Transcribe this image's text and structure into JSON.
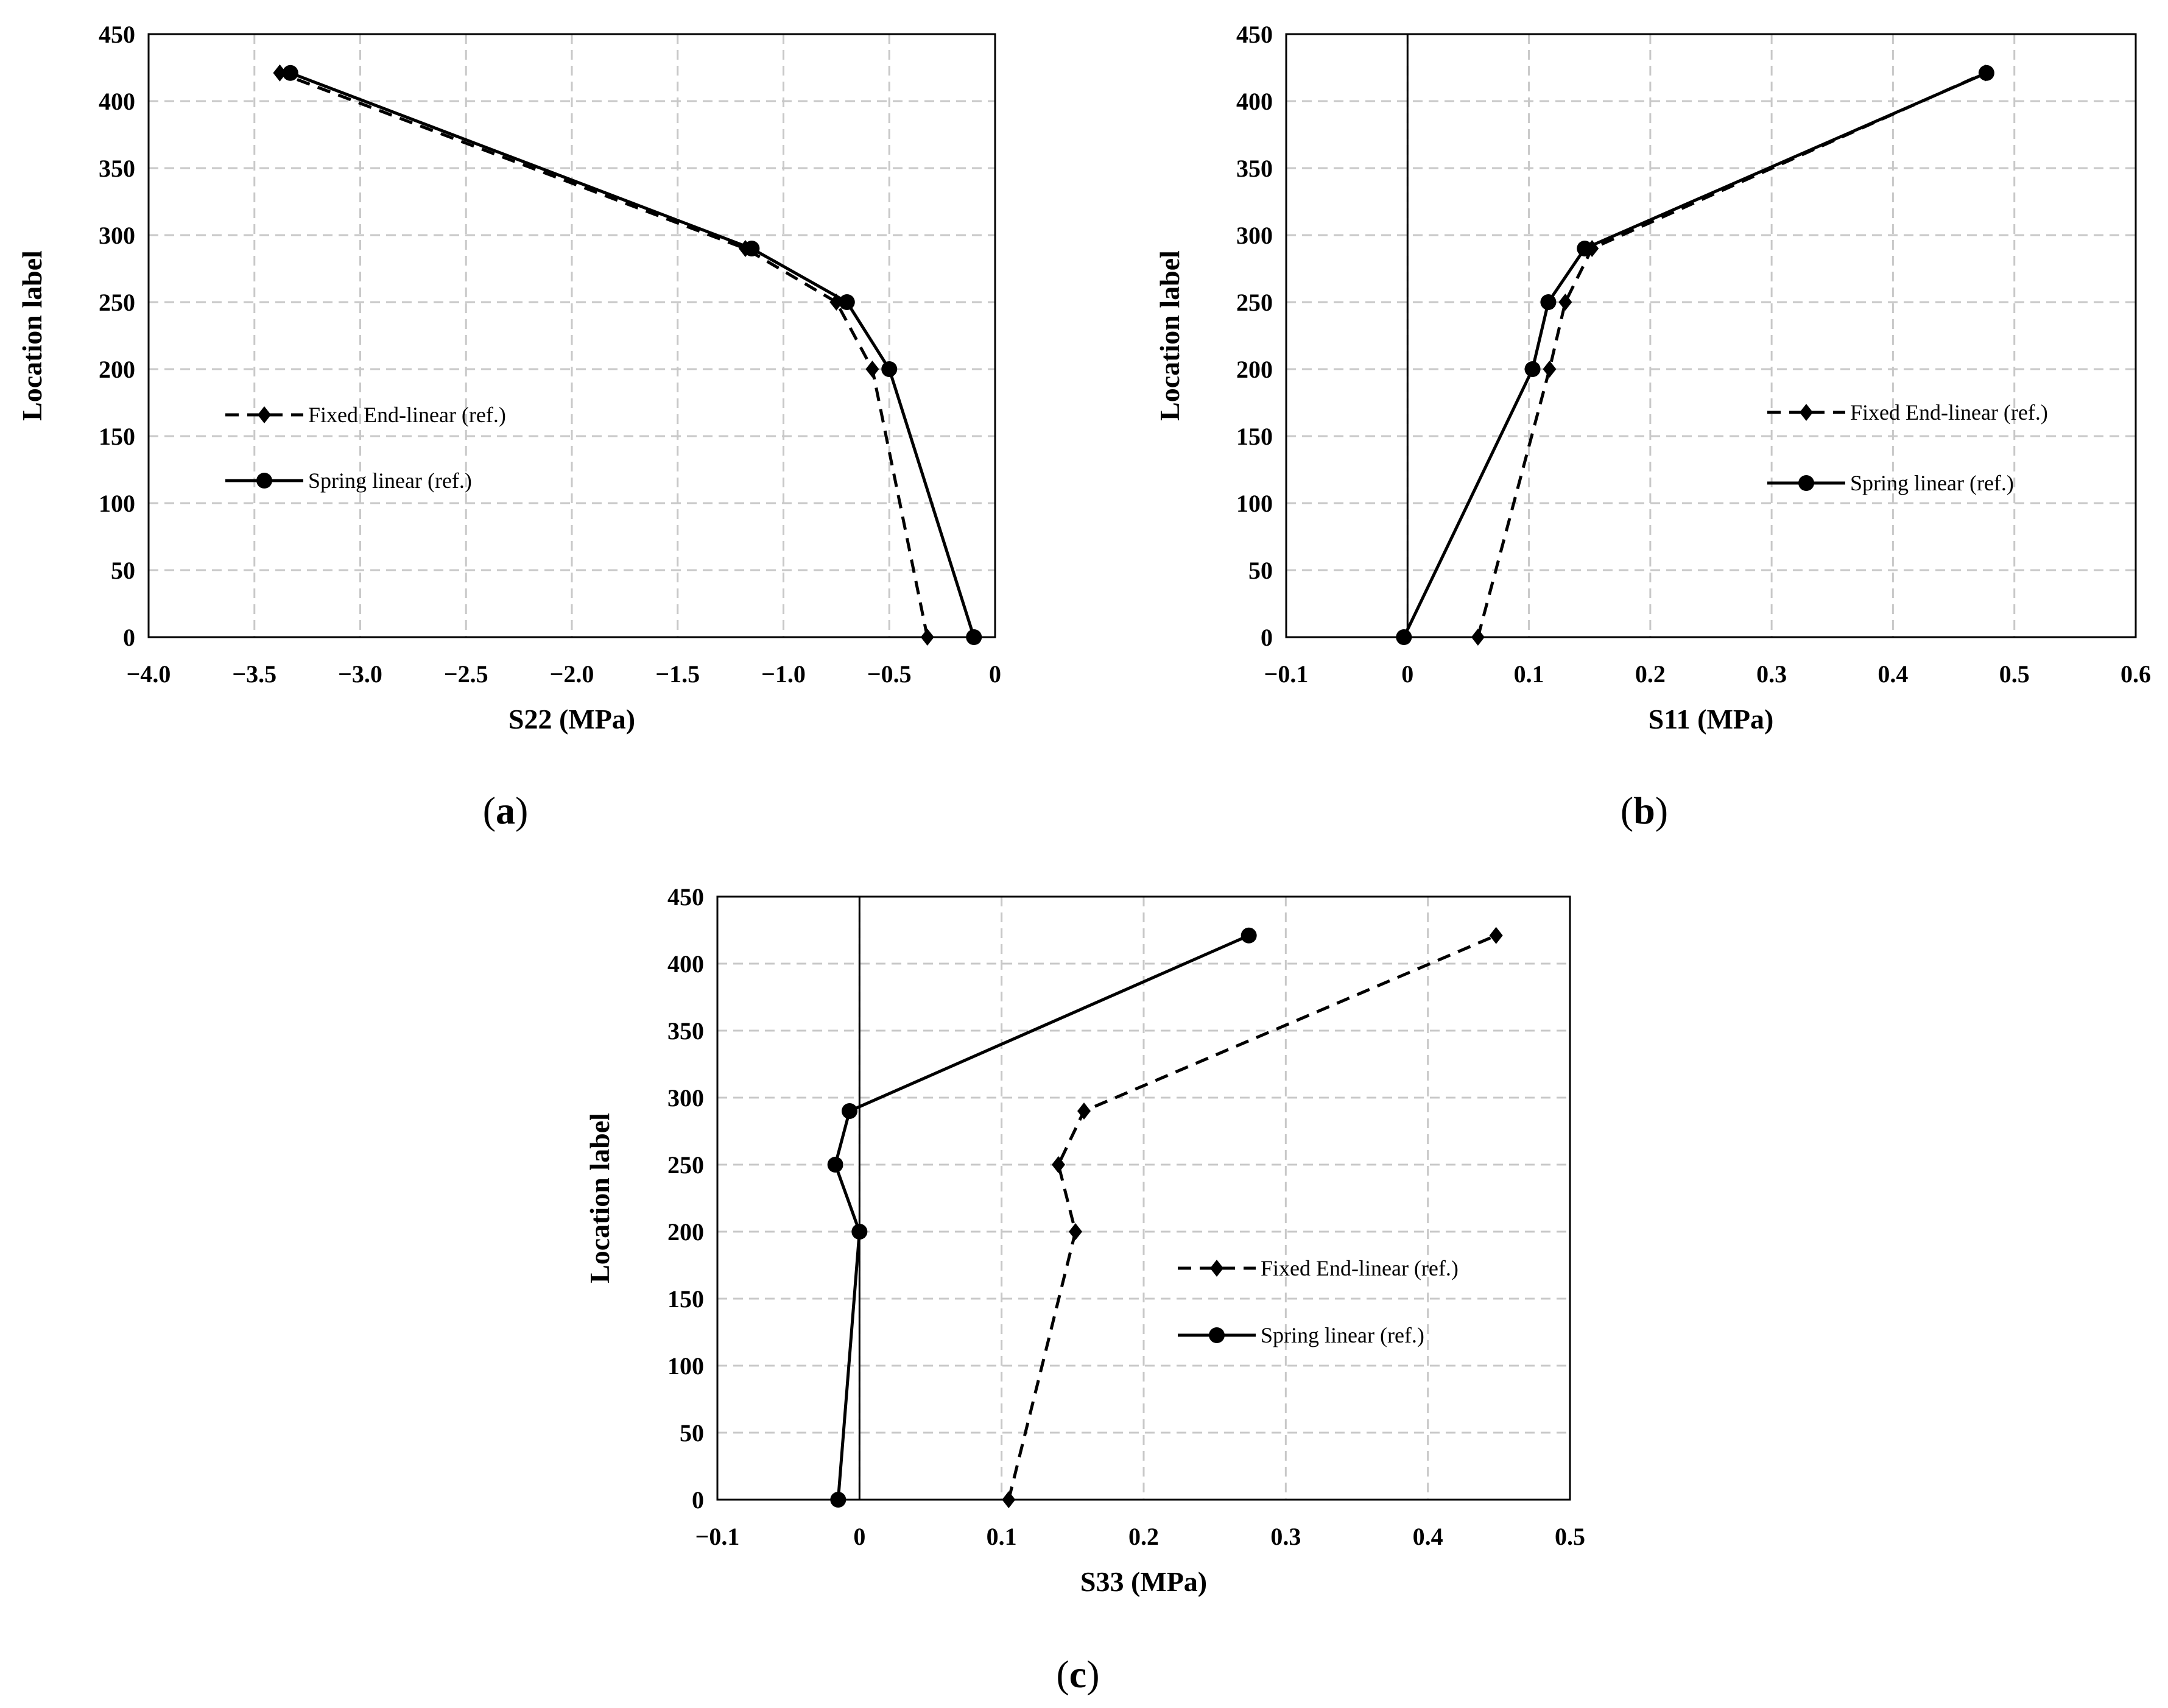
{
  "chart_data": [
    {
      "panel_label": "a",
      "type": "line",
      "xlabel": "S22 (MPa)",
      "ylabel": "Location label",
      "xlim": [
        -4.0,
        0
      ],
      "ylim": [
        0,
        450
      ],
      "x_ticks": [
        "−4.0",
        "−3.5",
        "−3.0",
        "−2.5",
        "−2.0",
        "−1.5",
        "−1.0",
        "−0.5",
        "0"
      ],
      "y_ticks": [
        "0",
        "50",
        "100",
        "150",
        "200",
        "250",
        "300",
        "350",
        "400",
        "450"
      ],
      "grid": true,
      "legend_position": "left-middle",
      "series": [
        {
          "name": "Fixed End-linear (ref.)",
          "style": "dashed",
          "marker": "diamond",
          "points": [
            [
              -0.32,
              0
            ],
            [
              -0.58,
              200
            ],
            [
              -0.75,
              250
            ],
            [
              -1.18,
              290
            ],
            [
              -3.38,
              421
            ]
          ]
        },
        {
          "name": "Spring linear (ref.)",
          "style": "solid",
          "marker": "circle",
          "points": [
            [
              -0.1,
              0
            ],
            [
              -0.5,
              200
            ],
            [
              -0.7,
              250
            ],
            [
              -1.15,
              290
            ],
            [
              -3.33,
              421
            ]
          ]
        }
      ]
    },
    {
      "panel_label": "b",
      "type": "line",
      "xlabel": "S11 (MPa)",
      "ylabel": "Location label",
      "xlim": [
        -0.1,
        0.6
      ],
      "ylim": [
        0,
        450
      ],
      "x_ticks": [
        "−0.1",
        "0",
        "0.1",
        "0.2",
        "0.3",
        "0.4",
        "0.5",
        "0.6"
      ],
      "y_ticks": [
        "0",
        "50",
        "100",
        "150",
        "200",
        "250",
        "300",
        "350",
        "400",
        "450"
      ],
      "grid": true,
      "zero_line": true,
      "legend_position": "right-middle",
      "series": [
        {
          "name": "Fixed End-linear (ref.)",
          "style": "dashed",
          "marker": "diamond",
          "points": [
            [
              0.058,
              0
            ],
            [
              0.117,
              200
            ],
            [
              0.13,
              250
            ],
            [
              0.152,
              290
            ],
            [
              0.476,
              421
            ]
          ]
        },
        {
          "name": "Spring linear (ref.)",
          "style": "solid",
          "marker": "circle",
          "points": [
            [
              -0.003,
              0
            ],
            [
              0.103,
              200
            ],
            [
              0.116,
              250
            ],
            [
              0.146,
              290
            ],
            [
              0.477,
              421
            ]
          ]
        }
      ]
    },
    {
      "panel_label": "c",
      "type": "line",
      "xlabel": "S33 (MPa)",
      "ylabel": "Location label",
      "xlim": [
        -0.1,
        0.5
      ],
      "ylim": [
        0,
        450
      ],
      "x_ticks": [
        "−0.1",
        "0",
        "0.1",
        "0.2",
        "0.3",
        "0.4",
        "0.5"
      ],
      "y_ticks": [
        "0",
        "50",
        "100",
        "150",
        "200",
        "250",
        "300",
        "350",
        "400",
        "450"
      ],
      "grid": true,
      "zero_line": true,
      "legend_position": "right-middle",
      "series": [
        {
          "name": "Fixed End-linear (ref.)",
          "style": "dashed",
          "marker": "diamond",
          "points": [
            [
              0.105,
              0
            ],
            [
              0.152,
              200
            ],
            [
              0.14,
              250
            ],
            [
              0.158,
              290
            ],
            [
              0.448,
              421
            ]
          ]
        },
        {
          "name": "Spring linear (ref.)",
          "style": "solid",
          "marker": "circle",
          "points": [
            [
              -0.015,
              0
            ],
            [
              0.0,
              200
            ],
            [
              -0.017,
              250
            ],
            [
              -0.007,
              290
            ],
            [
              0.274,
              421
            ]
          ]
        }
      ]
    }
  ]
}
